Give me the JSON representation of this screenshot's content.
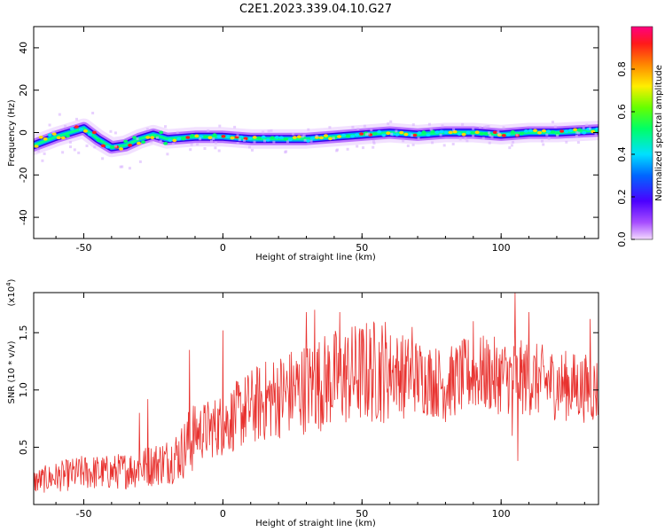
{
  "title": "C2E1.2023.339.04.10.G27",
  "chart_data": [
    {
      "type": "heatmap",
      "xlabel": "Height of straight line (km)",
      "ylabel": "Frequency (Hz)",
      "xlim": [
        -68,
        135
      ],
      "ylim": [
        -50,
        50
      ],
      "x_ticks": [
        -50,
        0,
        50,
        100
      ],
      "y_ticks": [
        -40,
        -20,
        0,
        20,
        40
      ],
      "colorbar": {
        "label": "Normalized spectral amplitude",
        "range": [
          0,
          1
        ],
        "ticks": [
          "0.0",
          "0.2",
          "0.4",
          "0.6",
          "0.8"
        ],
        "colormap": "rainbow (purple-blue-cyan-green-yellow-red-magenta)"
      },
      "ridge": [
        {
          "x": -68,
          "y": -6
        },
        {
          "x": -60,
          "y": -2
        },
        {
          "x": -55,
          "y": 0
        },
        {
          "x": -50,
          "y": 2
        },
        {
          "x": -45,
          "y": -3
        },
        {
          "x": -40,
          "y": -7
        },
        {
          "x": -35,
          "y": -6
        },
        {
          "x": -30,
          "y": -3
        },
        {
          "x": -25,
          "y": -1
        },
        {
          "x": -20,
          "y": -3
        },
        {
          "x": -10,
          "y": -2
        },
        {
          "x": 0,
          "y": -2
        },
        {
          "x": 10,
          "y": -3
        },
        {
          "x": 20,
          "y": -3
        },
        {
          "x": 30,
          "y": -3
        },
        {
          "x": 40,
          "y": -2
        },
        {
          "x": 50,
          "y": -1
        },
        {
          "x": 60,
          "y": 0
        },
        {
          "x": 70,
          "y": -1
        },
        {
          "x": 80,
          "y": 0
        },
        {
          "x": 90,
          "y": 0
        },
        {
          "x": 100,
          "y": -1
        },
        {
          "x": 110,
          "y": 0
        },
        {
          "x": 120,
          "y": 0
        },
        {
          "x": 135,
          "y": 1
        }
      ]
    },
    {
      "type": "line",
      "xlabel": "Height of straight line (km)",
      "ylabel": "SNR (10 * v/v)",
      "yscale_label": "(x10^4)",
      "yscale_base": "x10",
      "yscale_exp": "4",
      "xlim": [
        -68,
        135
      ],
      "ylim": [
        0,
        1.85
      ],
      "x_ticks": [
        -50,
        0,
        50,
        100
      ],
      "y_ticks": [
        "0.5",
        "1.0",
        "1.5"
      ],
      "color": "#e8322f",
      "series": [
        {
          "envelope": [
            {
              "x": -68,
              "y": 0.2
            },
            {
              "x": -60,
              "y": 0.24
            },
            {
              "x": -50,
              "y": 0.28
            },
            {
              "x": -40,
              "y": 0.28
            },
            {
              "x": -30,
              "y": 0.32
            },
            {
              "x": -20,
              "y": 0.38
            },
            {
              "x": -15,
              "y": 0.45
            },
            {
              "x": -10,
              "y": 0.62
            },
            {
              "x": 0,
              "y": 0.7
            },
            {
              "x": 10,
              "y": 0.85
            },
            {
              "x": 20,
              "y": 0.95
            },
            {
              "x": 30,
              "y": 1.02
            },
            {
              "x": 40,
              "y": 1.1
            },
            {
              "x": 50,
              "y": 1.15
            },
            {
              "x": 60,
              "y": 1.18
            },
            {
              "x": 70,
              "y": 1.12
            },
            {
              "x": 80,
              "y": 1.05
            },
            {
              "x": 90,
              "y": 1.15
            },
            {
              "x": 100,
              "y": 1.12
            },
            {
              "x": 110,
              "y": 1.1
            },
            {
              "x": 120,
              "y": 1.05
            },
            {
              "x": 135,
              "y": 1.0
            }
          ],
          "peaks": [
            {
              "x": -30,
              "y": 0.8
            },
            {
              "x": -27,
              "y": 0.92
            },
            {
              "x": -12,
              "y": 1.35
            },
            {
              "x": 0,
              "y": 1.52
            },
            {
              "x": 30,
              "y": 1.68
            },
            {
              "x": 33,
              "y": 1.7
            },
            {
              "x": 42,
              "y": 1.68
            },
            {
              "x": 68,
              "y": 1.55
            },
            {
              "x": 90,
              "y": 1.6
            },
            {
              "x": 105,
              "y": 1.85
            },
            {
              "x": 110,
              "y": 1.68
            },
            {
              "x": 132,
              "y": 1.62
            }
          ],
          "dips": [
            {
              "x": 65,
              "y": 0.75
            },
            {
              "x": 80,
              "y": 0.72
            },
            {
              "x": 98,
              "y": 0.85
            },
            {
              "x": 104,
              "y": 0.6
            },
            {
              "x": 106,
              "y": 0.38
            },
            {
              "x": 125,
              "y": 0.85
            }
          ]
        }
      ]
    }
  ]
}
